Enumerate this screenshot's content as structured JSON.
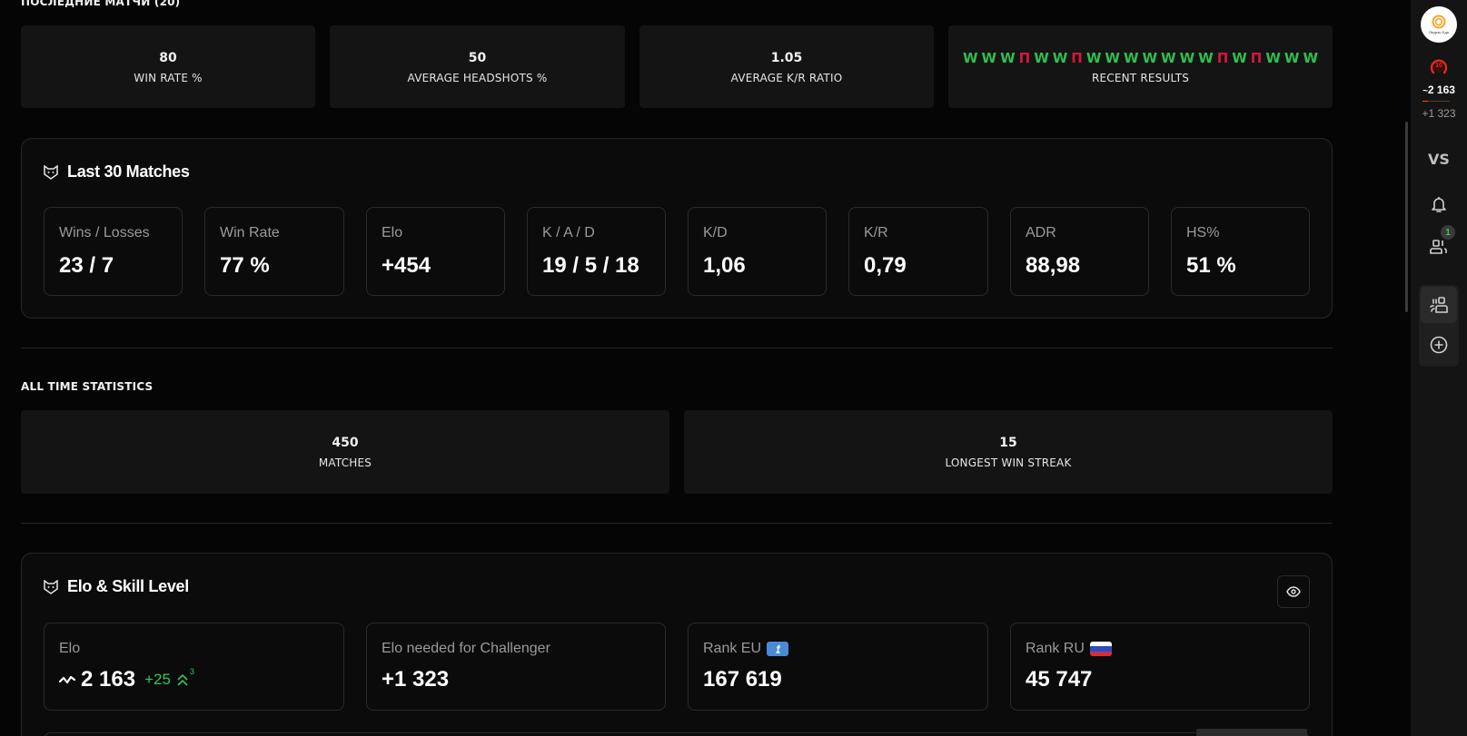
{
  "recent": {
    "title": "ПОСЛЕДНИЕ МАТЧИ (20)",
    "cards": [
      {
        "value": "80",
        "label": "WIN RATE %"
      },
      {
        "value": "50",
        "label": "AVERAGE HEADSHOTS %"
      },
      {
        "value": "1.05",
        "label": "AVERAGE K/R RATIO"
      }
    ],
    "results_label": "RECENT RESULTS",
    "results": [
      "W",
      "W",
      "W",
      "П",
      "W",
      "W",
      "П",
      "W",
      "W",
      "W",
      "W",
      "W",
      "W",
      "W",
      "П",
      "W",
      "П",
      "W",
      "W",
      "W"
    ],
    "colors": {
      "win": "#2fbf4f",
      "loss": "#d4173b"
    }
  },
  "last30": {
    "title": "Last 30 Matches",
    "stats": [
      {
        "label": "Wins / Losses",
        "value": "23 / 7"
      },
      {
        "label": "Win Rate",
        "value": "77 %"
      },
      {
        "label": "Elo",
        "value": "+454"
      },
      {
        "label": "K / A / D",
        "value": "19 / 5 / 18"
      },
      {
        "label": "K/D",
        "value": "1,06"
      },
      {
        "label": "K/R",
        "value": "0,79"
      },
      {
        "label": "ADR",
        "value": "88,98"
      },
      {
        "label": "HS%",
        "value": "51 %"
      }
    ]
  },
  "alltime": {
    "title": "ALL TIME STATISTICS",
    "cards": [
      {
        "value": "450",
        "label": "MATCHES"
      },
      {
        "value": "15",
        "label": "LONGEST WIN STREAK"
      }
    ]
  },
  "elo_skill": {
    "title": "Elo & Skill Level",
    "elo": {
      "label": "Elo",
      "value": "2 163",
      "delta": "+25",
      "delta_sup": "3",
      "delta_color": "#35c65a"
    },
    "challenger": {
      "label": "Elo needed for Challenger",
      "value": "+1 323"
    },
    "rank_eu": {
      "label": "Rank EU",
      "value": "167 619"
    },
    "rank_ru": {
      "label": "Rank RU",
      "value": "45 747"
    }
  },
  "sidebar": {
    "logo_text": "Яндекс Еда",
    "level": "10",
    "elo": "2 163",
    "elo_needed": "+1 323",
    "vs_label": "VS",
    "friends_badge": "1"
  }
}
